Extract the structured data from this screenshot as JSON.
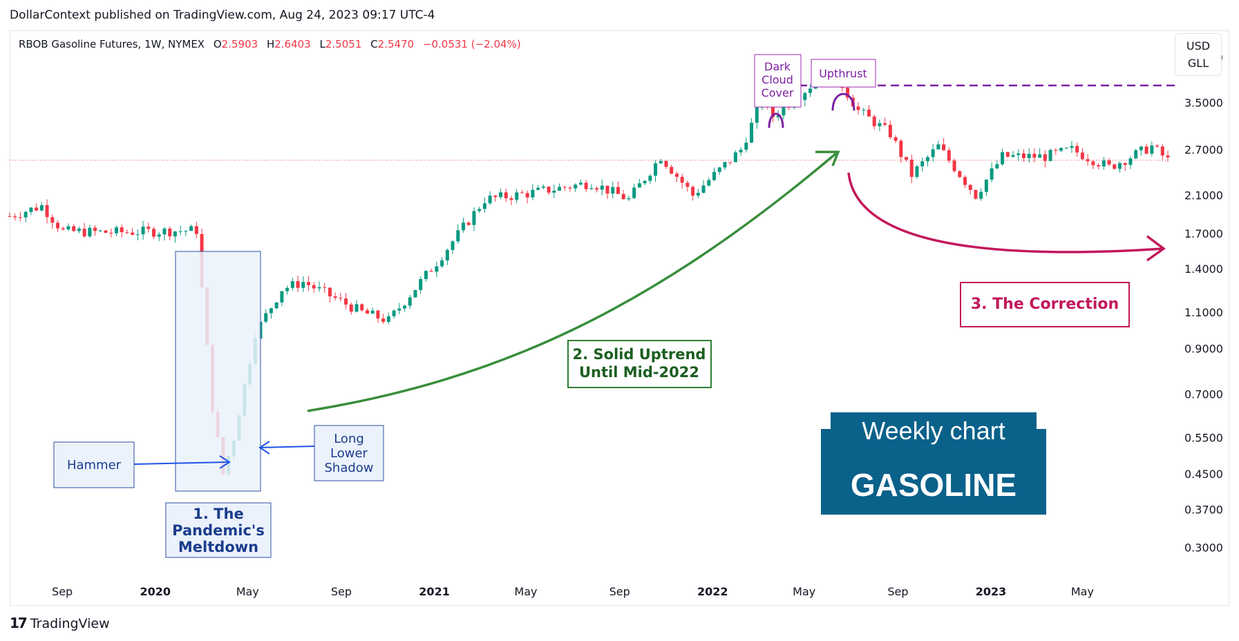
{
  "publisher_line": "DollarContext published on TradingView.com, Aug 24, 2023 09:17 UTC-4",
  "legend": {
    "symbol": "RBOB Gasoline Futures, 1W, NYMEX",
    "o_label": "O",
    "o_value": "2.5903",
    "h_label": "H",
    "h_value": "2.6403",
    "l_label": "L",
    "l_value": "2.5051",
    "c_label": "C",
    "c_value": "2.5470",
    "change": "−0.0531 (−2.04%)"
  },
  "unit": {
    "line1": "USD",
    "line2": "GLL"
  },
  "footer": {
    "logo": "17",
    "brand": "TradingView"
  },
  "colors": {
    "up": "#089981",
    "down": "#f23645",
    "hammer_blue": "#1e53e5",
    "green_arrow": "#388e3c",
    "purple": "#7b1fa2",
    "correction": "#c2185b",
    "weekly_bg": "#0a618a",
    "box_fill": "#ebf2fc",
    "box_border": "#2e4fa0"
  },
  "chart_data": {
    "type": "candlestick",
    "y_scale": "log",
    "ylim": [
      0.27,
      5.2
    ],
    "y_ticks": [
      "4.5000",
      "3.5000",
      "2.7000",
      "2.1000",
      "1.7000",
      "1.4000",
      "1.1000",
      "0.9000",
      "0.7000",
      "0.5500",
      "0.4500",
      "0.3700",
      "0.3000"
    ],
    "x_ticks": [
      "Sep",
      "2020",
      "Jan?",
      "May",
      "Sep",
      "2021",
      "May",
      "Sep",
      "2022",
      "May",
      "Sep",
      "2023",
      "May"
    ],
    "x_labels_shown": [
      "Sep",
      "2020",
      "May",
      "Sep",
      "2021",
      "May",
      "Sep",
      "2022",
      "May",
      "Sep",
      "2023",
      "May"
    ],
    "x_label_dates": [
      "2019-09-01",
      "2020-01-01",
      "2020-05-01",
      "2020-09-01",
      "2021-01-01",
      "2021-05-01",
      "2021-09-01",
      "2022-01-01",
      "2022-05-01",
      "2022-09-01",
      "2023-01-01",
      "2023-05-01"
    ],
    "x_range": [
      "2019-06-24",
      "2023-08-21"
    ],
    "last_close": 2.547,
    "close_path": [
      [
        "2019-06-24",
        1.87
      ],
      [
        "2019-08-05",
        1.98
      ],
      [
        "2019-09-02",
        1.72
      ],
      [
        "2019-11-04",
        1.71
      ],
      [
        "2020-01-06",
        1.72
      ],
      [
        "2020-02-24",
        1.73
      ],
      [
        "2020-03-16",
        0.65
      ],
      [
        "2020-03-30",
        0.45
      ],
      [
        "2020-04-13",
        0.55
      ],
      [
        "2020-05-11",
        0.98
      ],
      [
        "2020-06-15",
        1.25
      ],
      [
        "2020-07-13",
        1.3
      ],
      [
        "2020-09-28",
        1.1
      ],
      [
        "2020-11-02",
        1.05
      ],
      [
        "2021-01-04",
        1.45
      ],
      [
        "2021-03-08",
        2.05
      ],
      [
        "2021-05-03",
        2.12
      ],
      [
        "2021-07-26",
        2.25
      ],
      [
        "2021-09-13",
        2.05
      ],
      [
        "2021-10-25",
        2.6
      ],
      [
        "2021-12-06",
        2.1
      ],
      [
        "2022-02-07",
        2.7
      ],
      [
        "2022-03-07",
        3.55
      ],
      [
        "2022-03-21",
        3.25
      ],
      [
        "2022-05-02",
        3.75
      ],
      [
        "2022-06-06",
        4.25
      ],
      [
        "2022-07-11",
        3.35
      ],
      [
        "2022-08-22",
        2.95
      ],
      [
        "2022-09-19",
        2.35
      ],
      [
        "2022-10-24",
        2.75
      ],
      [
        "2022-12-12",
        2.1
      ],
      [
        "2023-01-16",
        2.6
      ],
      [
        "2023-03-13",
        2.6
      ],
      [
        "2023-04-17",
        2.7
      ],
      [
        "2023-06-05",
        2.45
      ],
      [
        "2023-07-31",
        2.75
      ],
      [
        "2023-08-21",
        2.547
      ]
    ],
    "levels": [
      {
        "name": "resistance",
        "value": 3.85
      }
    ]
  },
  "annotations": {
    "hammer": "Hammer",
    "long_lower_shadow": [
      "Long",
      "Lower",
      "Shadow"
    ],
    "pandemic": [
      "1. The",
      "Pandemic's",
      "Meltdown"
    ],
    "uptrend": [
      "2. Solid Uptrend",
      "Until Mid-2022"
    ],
    "correction": "3. The Correction",
    "dark_cloud": [
      "Dark",
      "Cloud",
      "Cover"
    ],
    "upthrust": "Upthrust",
    "weekly_chart": "Weekly chart",
    "gasoline": "GASOLINE"
  }
}
